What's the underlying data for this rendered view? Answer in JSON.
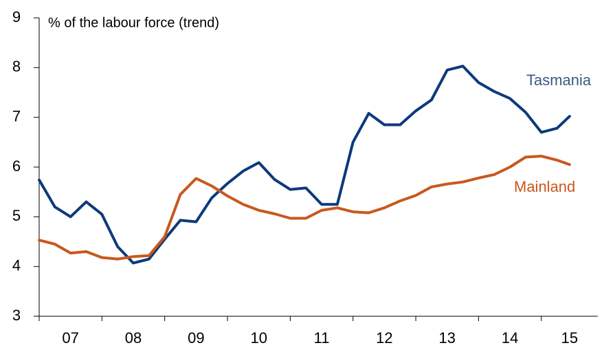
{
  "chart_data": {
    "type": "line",
    "y_axis_label": "% of the labour force (trend)",
    "categories": [
      "07",
      "08",
      "09",
      "10",
      "11",
      "12",
      "13",
      "14",
      "15"
    ],
    "x": [
      2007,
      2007.25,
      2007.5,
      2007.75,
      2008,
      2008.25,
      2008.5,
      2008.75,
      2009,
      2009.25,
      2009.5,
      2009.75,
      2010,
      2010.25,
      2010.5,
      2010.75,
      2011,
      2011.25,
      2011.5,
      2011.75,
      2012,
      2012.25,
      2012.5,
      2012.75,
      2013,
      2013.25,
      2013.5,
      2013.75,
      2014,
      2014.25,
      2014.5,
      2014.75,
      2015,
      2015.25,
      2015.45
    ],
    "series": [
      {
        "name": "Tasmania",
        "color": "#0d3a7a",
        "label_color": "#3b5a82",
        "values": [
          5.74,
          5.2,
          5.0,
          5.3,
          5.05,
          4.4,
          4.07,
          4.15,
          4.55,
          4.93,
          4.9,
          5.38,
          5.67,
          5.92,
          6.09,
          5.75,
          5.55,
          5.58,
          5.25,
          5.25,
          6.5,
          7.08,
          6.85,
          6.85,
          7.13,
          7.35,
          7.95,
          8.03,
          7.7,
          7.52,
          7.38,
          7.1,
          6.7,
          6.78,
          7.02
        ]
      },
      {
        "name": "Mainland",
        "color": "#c8581e",
        "label_color": "#c8581e",
        "values": [
          4.53,
          4.45,
          4.27,
          4.3,
          4.18,
          4.15,
          4.2,
          4.22,
          4.6,
          5.45,
          5.77,
          5.62,
          5.42,
          5.25,
          5.13,
          5.06,
          4.97,
          4.97,
          5.13,
          5.18,
          5.1,
          5.08,
          5.18,
          5.32,
          5.43,
          5.6,
          5.66,
          5.7,
          5.78,
          5.85,
          6.0,
          6.2,
          6.22,
          6.14,
          6.05
        ]
      }
    ],
    "xlim": [
      2007,
      2015.9
    ],
    "xticks": [
      2007,
      2008,
      2009,
      2010,
      2011,
      2012,
      2013,
      2014,
      2015
    ],
    "ylim": [
      3,
      9
    ],
    "yticks": [
      3,
      4,
      5,
      6,
      7,
      8,
      9
    ]
  }
}
